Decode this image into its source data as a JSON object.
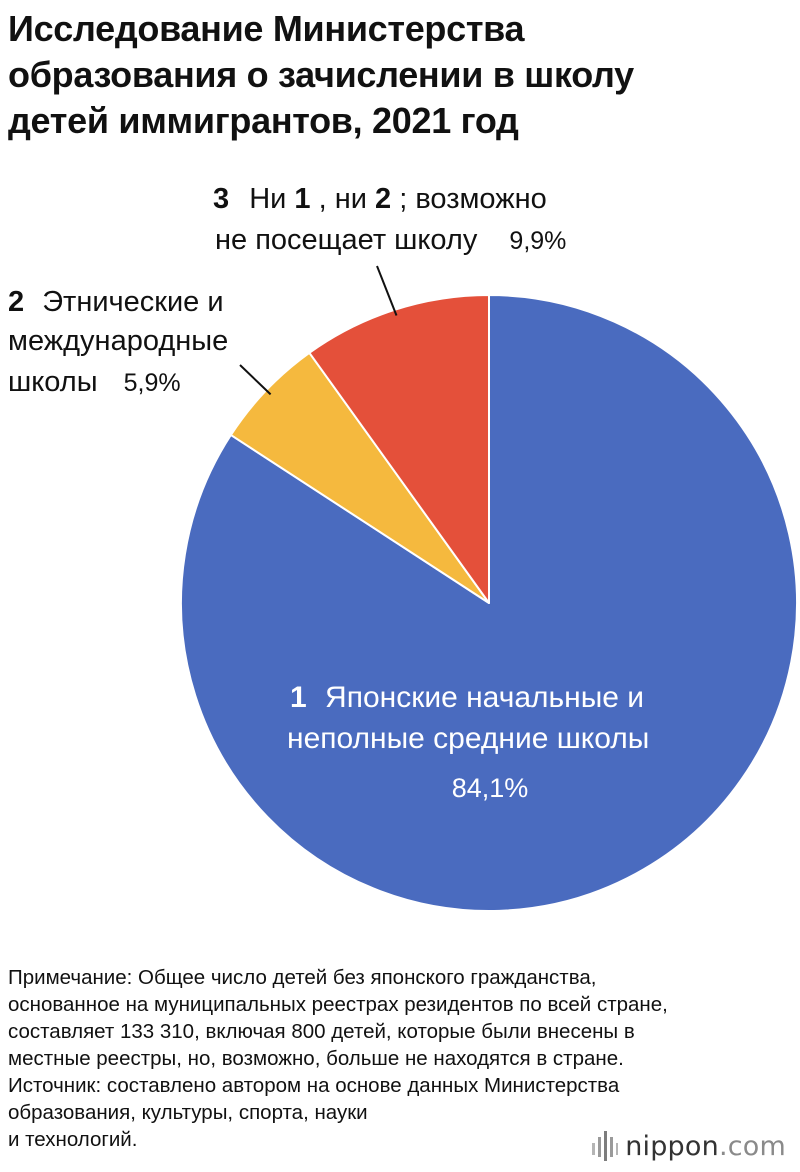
{
  "header": {
    "title_lines": [
      "Исследование Министерства",
      "образования о зачислении в школу",
      "детей иммигрантов, 2021 год"
    ]
  },
  "chart_data": {
    "type": "pie",
    "title": "Исследование Министерства образования о зачислении в школу детей иммигрантов, 2021 год",
    "start_angle": "12 o'clock, clockwise",
    "slices": [
      {
        "number": "1",
        "label_lines": [
          "Японские начальные и",
          "неполные средние школы"
        ],
        "value": 84.1,
        "value_label": "84,1%",
        "color": "#4a6bbf"
      },
      {
        "number": "2",
        "label_lines": [
          "Этнические и",
          "международные",
          "школы"
        ],
        "value": 5.9,
        "value_label": "5,9%",
        "color": "#f5b93e"
      },
      {
        "number": "3",
        "label_parts": [
          {
            "text": "Ни ",
            "bold": false
          },
          {
            "text": "1",
            "bold": true
          },
          {
            "text": ", ни ",
            "bold": false
          },
          {
            "text": "2",
            "bold": true
          },
          {
            "text": "; возможно",
            "bold": false
          }
        ],
        "label_line2": "не посещает школу",
        "value": 9.9,
        "value_label": "9,9%",
        "color": "#e4503a"
      }
    ]
  },
  "footer": {
    "note_lines": [
      "Примечание: Общее число детей без японского гражданства,",
      "основанное на муниципальных реестрах резидентов по всей стране,",
      "составляет 133 310, включая 800 детей, которые были внесены в",
      "местные реестры, но, возможно, больше не находятся в стране."
    ],
    "source_lines": [
      "Источник: составлено автором на основе данных Министерства",
      "образования, культуры, спорта, науки",
      "и технологий."
    ]
  },
  "brand": {
    "name": "nippon",
    "suffix": ".com",
    "icon": "nippon-bars-icon"
  }
}
